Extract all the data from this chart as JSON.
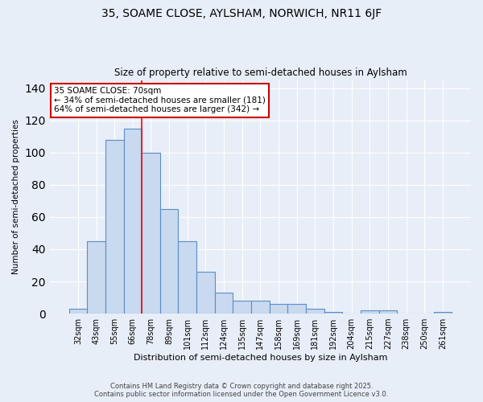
{
  "title1": "35, SOAME CLOSE, AYLSHAM, NORWICH, NR11 6JF",
  "title2": "Size of property relative to semi-detached houses in Aylsham",
  "xlabel": "Distribution of semi-detached houses by size in Aylsham",
  "ylabel": "Number of semi-detached properties",
  "categories": [
    "32sqm",
    "43sqm",
    "55sqm",
    "66sqm",
    "78sqm",
    "89sqm",
    "101sqm",
    "112sqm",
    "124sqm",
    "135sqm",
    "147sqm",
    "158sqm",
    "169sqm",
    "181sqm",
    "192sqm",
    "204sqm",
    "215sqm",
    "227sqm",
    "238sqm",
    "250sqm",
    "261sqm"
  ],
  "values": [
    3,
    45,
    108,
    115,
    100,
    65,
    45,
    26,
    13,
    8,
    8,
    6,
    6,
    3,
    1,
    0,
    2,
    2,
    0,
    0,
    1
  ],
  "bar_color": "#c8d9f0",
  "bar_edge_color": "#5b8ec4",
  "red_line_index": 3,
  "annotation_text": "35 SOAME CLOSE: 70sqm\n← 34% of semi-detached houses are smaller (181)\n64% of semi-detached houses are larger (342) →",
  "annotation_box_color": "#ffffff",
  "annotation_box_edge": "#cc0000",
  "ylim": [
    0,
    145
  ],
  "yticks": [
    0,
    20,
    40,
    60,
    80,
    100,
    120,
    140
  ],
  "footer1": "Contains HM Land Registry data © Crown copyright and database right 2025.",
  "footer2": "Contains public sector information licensed under the Open Government Licence v3.0.",
  "bg_color": "#e8eef8",
  "plot_bg": "#e8eef8",
  "grid_color": "#ffffff"
}
